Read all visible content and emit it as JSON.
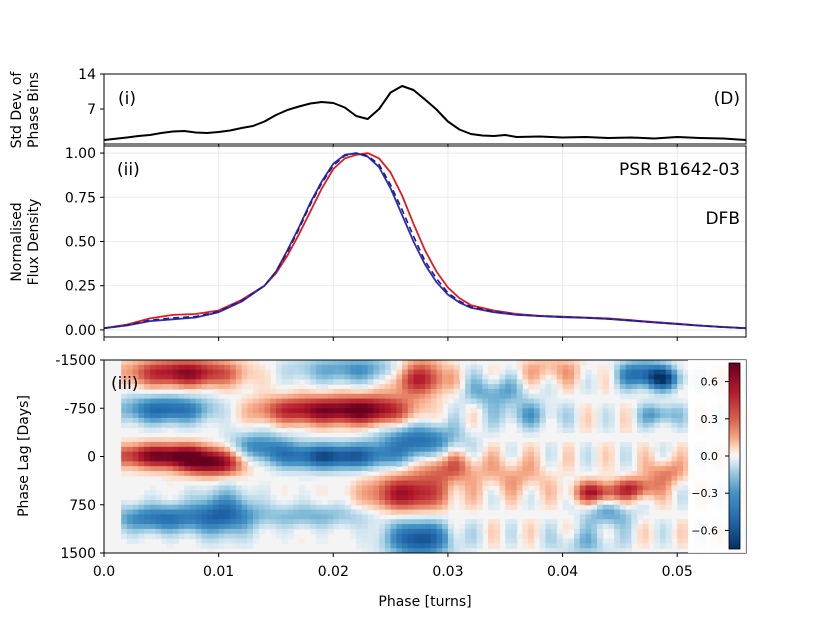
{
  "chart_data": [
    {
      "type": "line",
      "panel_label": "(i)",
      "corner_label": "(D)",
      "ylabel_lines": [
        "Std Dev. of",
        "Phase Bins"
      ],
      "xlim": [
        0.0,
        0.056
      ],
      "ylim": [
        0,
        14
      ],
      "yticks": [
        7,
        14
      ],
      "ytick_labels": [
        "7",
        "14"
      ],
      "series": [
        {
          "name": "std_dev",
          "color": "#000000",
          "x": [
            0.0,
            0.002,
            0.003,
            0.004,
            0.005,
            0.006,
            0.007,
            0.008,
            0.009,
            0.01,
            0.011,
            0.012,
            0.013,
            0.014,
            0.015,
            0.016,
            0.017,
            0.018,
            0.019,
            0.02,
            0.021,
            0.022,
            0.023,
            0.024,
            0.025,
            0.026,
            0.027,
            0.028,
            0.029,
            0.03,
            0.031,
            0.032,
            0.033,
            0.034,
            0.035,
            0.036,
            0.038,
            0.04,
            0.042,
            0.044,
            0.046,
            0.048,
            0.05,
            0.052,
            0.054,
            0.056
          ],
          "values": [
            0.8,
            1.3,
            1.6,
            1.8,
            2.2,
            2.5,
            2.6,
            2.3,
            2.2,
            2.4,
            2.7,
            3.2,
            3.6,
            4.5,
            5.8,
            6.8,
            7.5,
            8.1,
            8.4,
            8.2,
            7.3,
            5.6,
            5.0,
            7.0,
            10.3,
            11.6,
            10.8,
            8.9,
            6.9,
            4.5,
            2.9,
            2.0,
            1.7,
            1.6,
            1.8,
            1.4,
            1.5,
            1.3,
            1.4,
            1.2,
            1.3,
            1.1,
            1.4,
            1.2,
            1.1,
            0.8
          ]
        }
      ]
    },
    {
      "type": "line",
      "panel_label": "(ii)",
      "title": "PSR B1642-03",
      "annotation": "DFB",
      "ylabel_lines": [
        "Normalised",
        "Flux Density"
      ],
      "xlim": [
        0.0,
        0.056
      ],
      "ylim": [
        -0.04,
        1.04
      ],
      "yticks": [
        0.0,
        0.25,
        0.5,
        0.75,
        1.0
      ],
      "ytick_labels": [
        "0.00",
        "0.25",
        "0.50",
        "0.75",
        "1.00"
      ],
      "grid": true,
      "series": [
        {
          "name": "profile_red",
          "color": "#e31a1c",
          "x": [
            0.0,
            0.002,
            0.004,
            0.006,
            0.008,
            0.01,
            0.012,
            0.014,
            0.015,
            0.016,
            0.017,
            0.018,
            0.019,
            0.02,
            0.021,
            0.022,
            0.023,
            0.024,
            0.025,
            0.026,
            0.027,
            0.028,
            0.029,
            0.03,
            0.031,
            0.032,
            0.034,
            0.036,
            0.038,
            0.04,
            0.042,
            0.044,
            0.046,
            0.048,
            0.05,
            0.052,
            0.054,
            0.056
          ],
          "values": [
            0.01,
            0.03,
            0.065,
            0.085,
            0.09,
            0.11,
            0.17,
            0.25,
            0.32,
            0.42,
            0.54,
            0.67,
            0.8,
            0.91,
            0.97,
            0.99,
            1.0,
            0.97,
            0.89,
            0.76,
            0.6,
            0.45,
            0.33,
            0.24,
            0.18,
            0.14,
            0.11,
            0.09,
            0.08,
            0.075,
            0.07,
            0.065,
            0.055,
            0.045,
            0.035,
            0.025,
            0.017,
            0.01
          ]
        },
        {
          "name": "profile_blue",
          "color": "#2b2bbf",
          "x": [
            0.0,
            0.002,
            0.004,
            0.006,
            0.008,
            0.01,
            0.012,
            0.014,
            0.015,
            0.016,
            0.017,
            0.018,
            0.019,
            0.02,
            0.021,
            0.022,
            0.023,
            0.024,
            0.025,
            0.026,
            0.027,
            0.028,
            0.029,
            0.03,
            0.031,
            0.032,
            0.034,
            0.036,
            0.038,
            0.04,
            0.042,
            0.044,
            0.046,
            0.048,
            0.05,
            0.052,
            0.054,
            0.056
          ],
          "values": [
            0.01,
            0.025,
            0.05,
            0.06,
            0.07,
            0.1,
            0.16,
            0.25,
            0.33,
            0.45,
            0.58,
            0.72,
            0.84,
            0.94,
            0.99,
            1.0,
            0.98,
            0.92,
            0.8,
            0.65,
            0.5,
            0.37,
            0.27,
            0.2,
            0.155,
            0.125,
            0.1,
            0.085,
            0.078,
            0.072,
            0.068,
            0.062,
            0.052,
            0.042,
            0.033,
            0.024,
            0.016,
            0.01
          ]
        },
        {
          "name": "profile_mean",
          "color": "#1f1f7a",
          "dashed": true,
          "x": [
            0.0,
            0.002,
            0.004,
            0.006,
            0.008,
            0.01,
            0.012,
            0.014,
            0.015,
            0.016,
            0.017,
            0.018,
            0.019,
            0.02,
            0.021,
            0.022,
            0.023,
            0.024,
            0.025,
            0.026,
            0.027,
            0.028,
            0.029,
            0.03,
            0.031,
            0.032,
            0.034,
            0.036,
            0.038,
            0.04,
            0.042,
            0.044,
            0.046,
            0.048,
            0.05,
            0.052,
            0.054,
            0.056
          ],
          "values": [
            0.01,
            0.027,
            0.055,
            0.068,
            0.076,
            0.104,
            0.165,
            0.25,
            0.33,
            0.44,
            0.57,
            0.71,
            0.83,
            0.93,
            0.985,
            1.0,
            0.985,
            0.935,
            0.82,
            0.68,
            0.53,
            0.39,
            0.29,
            0.21,
            0.163,
            0.13,
            0.104,
            0.088,
            0.079,
            0.073,
            0.069,
            0.063,
            0.053,
            0.043,
            0.034,
            0.024,
            0.016,
            0.01
          ]
        }
      ]
    },
    {
      "type": "heatmap",
      "panel_label": "(iii)",
      "xlabel": "Phase [turns]",
      "ylabel": "Phase Lag [Days]",
      "xlim": [
        0.0,
        0.056
      ],
      "ylim": [
        -1500,
        1500
      ],
      "xticks": [
        0.0,
        0.01,
        0.02,
        0.03,
        0.04,
        0.05
      ],
      "xtick_labels": [
        "0.0",
        "0.01",
        "0.02",
        "0.03",
        "0.04",
        "0.05"
      ],
      "yticks": [
        -1500,
        -750,
        0,
        750,
        1500
      ],
      "ytick_labels": [
        "-1500",
        "-750",
        "0",
        "750",
        "1500"
      ],
      "colormap": "RdBu_r",
      "colorbar_range": [
        -0.75,
        0.75
      ],
      "colorbar_ticks": [
        0.6,
        0.3,
        0.0,
        -0.3,
        -0.6
      ],
      "colorbar_tick_labels": [
        "0.6",
        "0.3",
        "0.0",
        "−0.3",
        "−0.6"
      ],
      "features": [
        {
          "x": 0.007,
          "lag": -1300,
          "w": 0.0035,
          "h": 150,
          "value": 0.65
        },
        {
          "x": 0.0055,
          "lag": -730,
          "w": 0.003,
          "h": 150,
          "value": -0.55
        },
        {
          "x": 0.006,
          "lag": -10,
          "w": 0.004,
          "h": 130,
          "value": 0.75
        },
        {
          "x": 0.0095,
          "lag": 150,
          "w": 0.002,
          "h": 120,
          "value": 0.5
        },
        {
          "x": 0.005,
          "lag": 960,
          "w": 0.003,
          "h": 150,
          "value": -0.5
        },
        {
          "x": 0.0105,
          "lag": 880,
          "w": 0.0018,
          "h": 250,
          "value": -0.45
        },
        {
          "x": 0.0225,
          "lag": -1350,
          "w": 0.0045,
          "h": 150,
          "value": -0.35
        },
        {
          "x": 0.018,
          "lag": -720,
          "w": 0.0035,
          "h": 150,
          "value": 0.6
        },
        {
          "x": 0.0235,
          "lag": -720,
          "w": 0.0025,
          "h": 160,
          "value": 0.55
        },
        {
          "x": 0.0135,
          "lag": -150,
          "w": 0.002,
          "h": 160,
          "value": -0.4
        },
        {
          "x": 0.02,
          "lag": 0,
          "w": 0.004,
          "h": 140,
          "value": -0.65
        },
        {
          "x": 0.018,
          "lag": 920,
          "w": 0.004,
          "h": 130,
          "value": -0.25
        },
        {
          "x": 0.0275,
          "lag": -1250,
          "w": 0.0018,
          "h": 200,
          "value": 0.65
        },
        {
          "x": 0.0275,
          "lag": -250,
          "w": 0.0025,
          "h": 180,
          "value": -0.5
        },
        {
          "x": 0.0265,
          "lag": 580,
          "w": 0.0025,
          "h": 200,
          "value": 0.6
        },
        {
          "x": 0.03,
          "lag": 160,
          "w": 0.002,
          "h": 180,
          "value": 0.35
        },
        {
          "x": 0.0275,
          "lag": 1280,
          "w": 0.002,
          "h": 200,
          "value": -0.65
        },
        {
          "x": 0.034,
          "lag": -1000,
          "w": 0.002,
          "h": 160,
          "value": -0.3
        },
        {
          "x": 0.036,
          "lag": 300,
          "w": 0.002,
          "h": 200,
          "value": 0.2
        },
        {
          "x": 0.037,
          "lag": -650,
          "w": 0.002,
          "h": 150,
          "value": -0.25
        },
        {
          "x": 0.043,
          "lag": 560,
          "w": 0.0015,
          "h": 120,
          "value": 0.55
        },
        {
          "x": 0.0465,
          "lag": 500,
          "w": 0.0012,
          "h": 120,
          "value": 0.45
        },
        {
          "x": 0.044,
          "lag": 900,
          "w": 0.0015,
          "h": 150,
          "value": -0.3
        },
        {
          "x": 0.047,
          "lag": -1280,
          "w": 0.0015,
          "h": 150,
          "value": -0.55
        },
        {
          "x": 0.049,
          "lag": -1200,
          "w": 0.0012,
          "h": 120,
          "value": -0.45
        },
        {
          "x": 0.0485,
          "lag": -650,
          "w": 0.0012,
          "h": 120,
          "value": -0.35
        },
        {
          "x": 0.049,
          "lag": 250,
          "w": 0.0012,
          "h": 150,
          "value": 0.3
        },
        {
          "x": 0.042,
          "lag": 1350,
          "w": 0.002,
          "h": 150,
          "value": -0.2
        },
        {
          "x": 0.039,
          "lag": -1350,
          "w": 0.002,
          "h": 150,
          "value": 0.2
        }
      ]
    }
  ]
}
